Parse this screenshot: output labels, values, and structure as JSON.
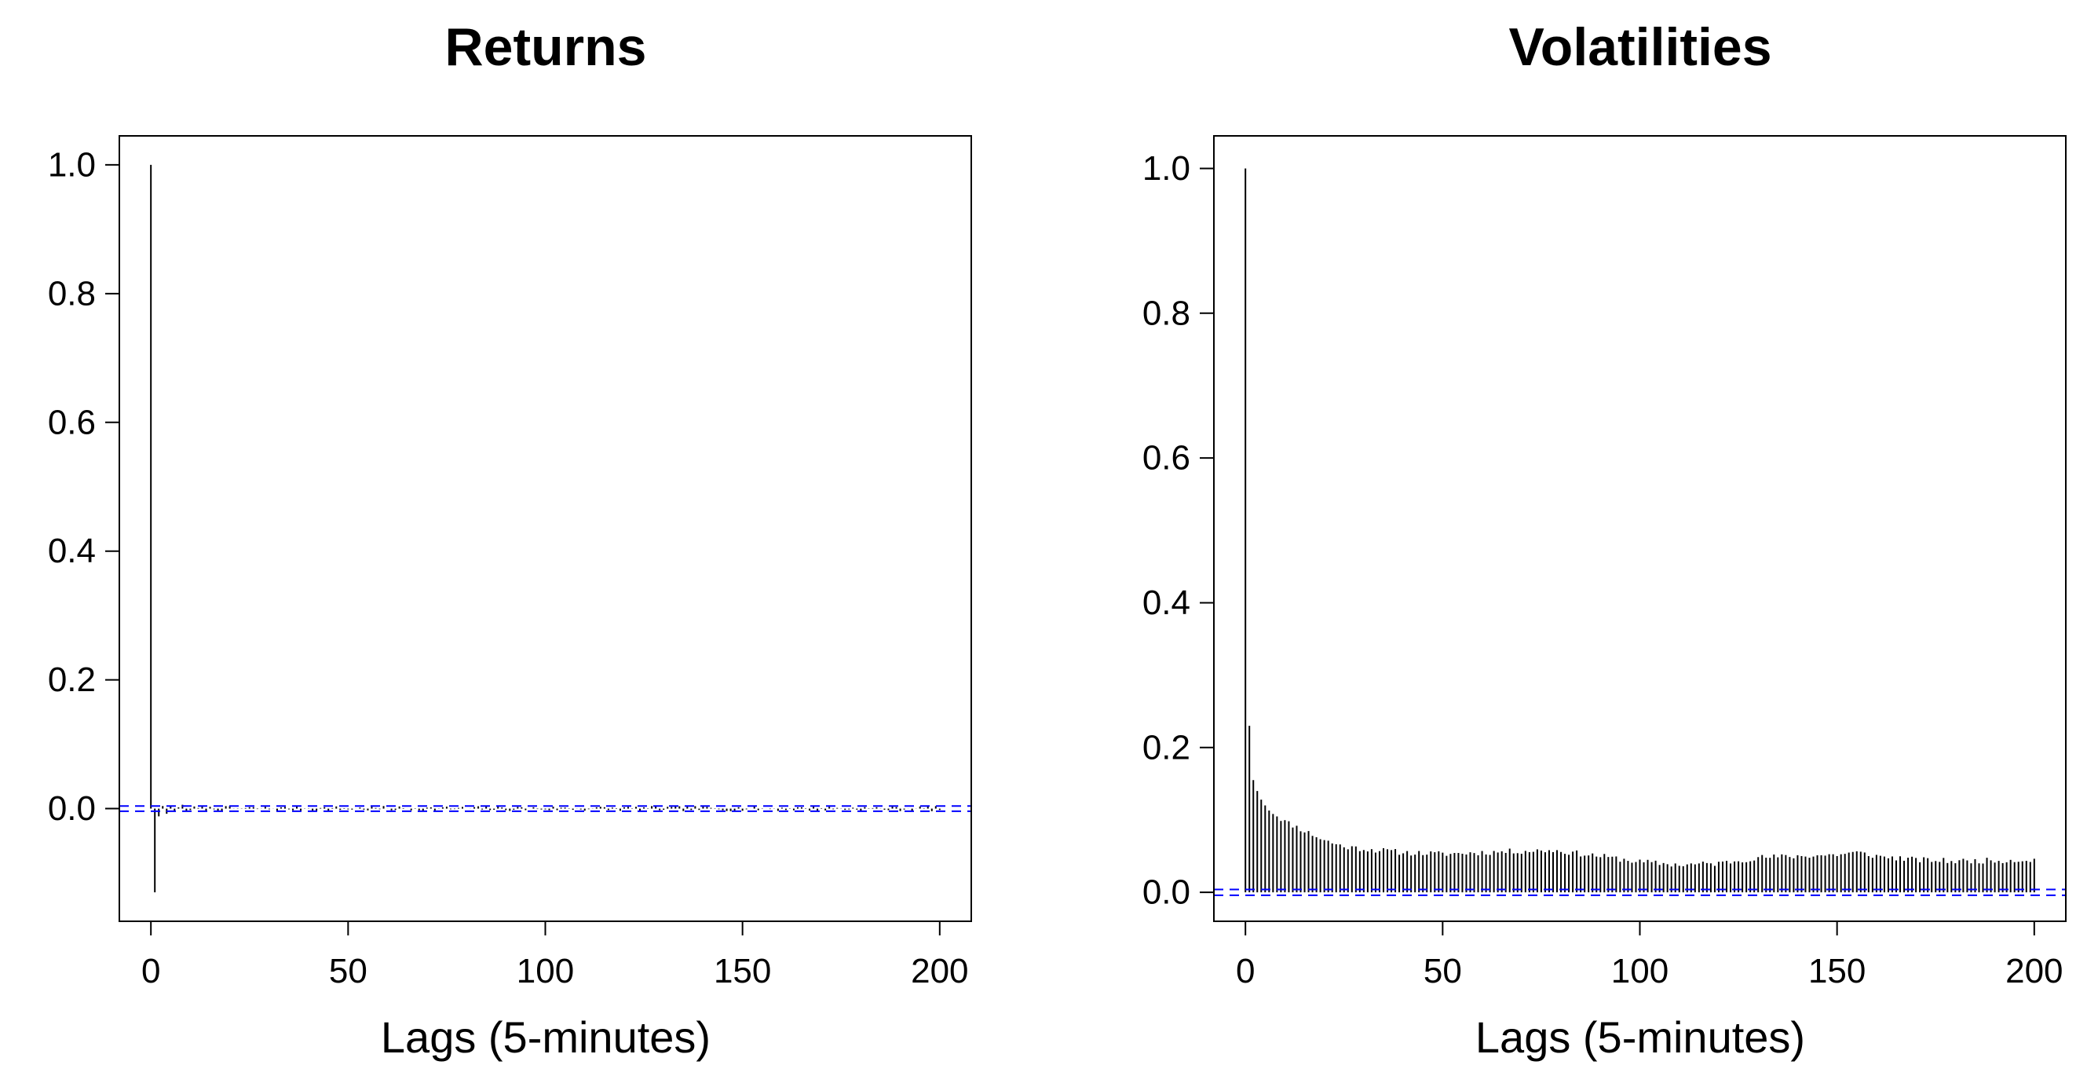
{
  "chart_data": [
    {
      "type": "bar",
      "title": "Returns",
      "xlabel": "Lags (5-minutes)",
      "ylabel": "",
      "xlim": [
        -8,
        208
      ],
      "ylim": [
        -0.175,
        1.045
      ],
      "x_ticks": [
        0,
        50,
        100,
        150,
        200
      ],
      "x_tick_labels": [
        "0",
        "50",
        "100",
        "150",
        "200"
      ],
      "y_ticks": [
        0.0,
        0.2,
        0.4,
        0.6,
        0.8,
        1.0
      ],
      "y_tick_labels": [
        "0.0",
        "0.2",
        "0.4",
        "0.6",
        "0.8",
        "1.0"
      ],
      "grid": false,
      "legend": "none",
      "bar_color": "#000000",
      "confidence_band_color": "#0000ff",
      "confidence_band": [
        0.004,
        -0.004
      ],
      "lag0_value": 1.0,
      "lag1_value": -0.13,
      "early_values": [
        -0.012,
        0.004,
        -0.008,
        0.003,
        -0.005,
        0.002,
        0.006,
        -0.004
      ],
      "tail_amplitude": 0.004
    },
    {
      "type": "bar",
      "title": "Volatilities",
      "xlabel": "Lags (5-minutes)",
      "ylabel": "",
      "xlim": [
        -8,
        208
      ],
      "ylim": [
        -0.04,
        1.045
      ],
      "x_ticks": [
        0,
        50,
        100,
        150,
        200
      ],
      "x_tick_labels": [
        "0",
        "50",
        "100",
        "150",
        "200"
      ],
      "y_ticks": [
        0.0,
        0.2,
        0.4,
        0.6,
        0.8,
        1.0
      ],
      "y_tick_labels": [
        "0.0",
        "0.2",
        "0.4",
        "0.6",
        "0.8",
        "1.0"
      ],
      "grid": false,
      "legend": "none",
      "bar_color": "#000000",
      "confidence_band_color": "#0000ff",
      "confidence_band": [
        0.004,
        -0.004
      ],
      "lags": [
        0,
        200
      ],
      "knots": [
        [
          0,
          1.0
        ],
        [
          1,
          0.23
        ],
        [
          2,
          0.155
        ],
        [
          3,
          0.14
        ],
        [
          4,
          0.128
        ],
        [
          5,
          0.12
        ],
        [
          7,
          0.11
        ],
        [
          10,
          0.098
        ],
        [
          15,
          0.085
        ],
        [
          20,
          0.072
        ],
        [
          25,
          0.063
        ],
        [
          30,
          0.06
        ],
        [
          40,
          0.055
        ],
        [
          50,
          0.053
        ],
        [
          60,
          0.055
        ],
        [
          70,
          0.057
        ],
        [
          78,
          0.058
        ],
        [
          90,
          0.05
        ],
        [
          100,
          0.042
        ],
        [
          110,
          0.038
        ],
        [
          120,
          0.04
        ],
        [
          130,
          0.048
        ],
        [
          140,
          0.05
        ],
        [
          150,
          0.052
        ],
        [
          155,
          0.055
        ],
        [
          160,
          0.05
        ],
        [
          170,
          0.045
        ],
        [
          180,
          0.043
        ],
        [
          190,
          0.044
        ],
        [
          200,
          0.045
        ]
      ]
    }
  ]
}
